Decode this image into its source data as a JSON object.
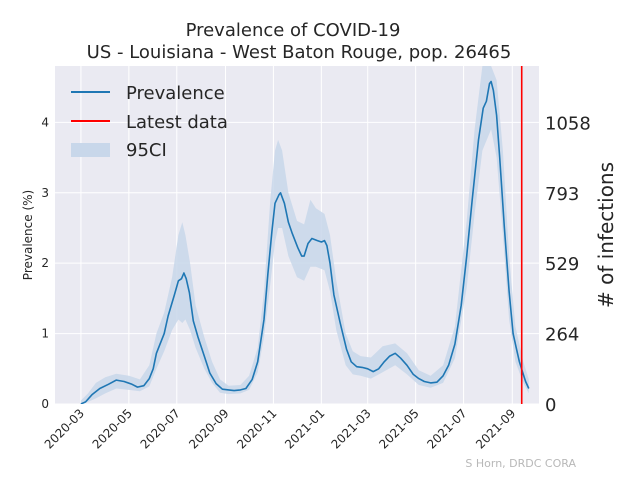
{
  "chart_data": {
    "type": "line",
    "title": "Prevalence of COVID-19",
    "subtitle": "US - Louisiana - West Baton Rouge, pop. 26465",
    "ylabel": "Prevalence (%)",
    "ylabel_right": "# of infections",
    "ylim": [
      0,
      4.8
    ],
    "xlim": [
      "2020-01-28",
      "2021-10-05"
    ],
    "grid": true,
    "legend_position": "top-left",
    "y_ticks": [
      0,
      1,
      2,
      3,
      4
    ],
    "right_ticks": [
      {
        "value": 0,
        "label": "0"
      },
      {
        "value": 1,
        "label": "264"
      },
      {
        "value": 2,
        "label": "529"
      },
      {
        "value": 3,
        "label": "793"
      },
      {
        "value": 4,
        "label": "1058"
      }
    ],
    "x_ticks": [
      "2020-03",
      "2020-05",
      "2020-07",
      "2020-09",
      "2020-11",
      "2021-01",
      "2021-03",
      "2021-05",
      "2021-07",
      "2021-09"
    ],
    "series": [
      {
        "name": "Prevalence",
        "color": "#1f77b4",
        "points": [
          [
            "2020-03-01",
            0.0
          ],
          [
            "2020-03-07",
            0.03
          ],
          [
            "2020-03-15",
            0.13
          ],
          [
            "2020-03-25",
            0.22
          ],
          [
            "2020-04-05",
            0.28
          ],
          [
            "2020-04-15",
            0.34
          ],
          [
            "2020-04-25",
            0.32
          ],
          [
            "2020-05-05",
            0.28
          ],
          [
            "2020-05-12",
            0.24
          ],
          [
            "2020-05-20",
            0.26
          ],
          [
            "2020-05-27",
            0.36
          ],
          [
            "2020-06-01",
            0.5
          ],
          [
            "2020-06-05",
            0.72
          ],
          [
            "2020-06-15",
            1.0
          ],
          [
            "2020-06-20",
            1.25
          ],
          [
            "2020-06-28",
            1.55
          ],
          [
            "2020-07-03",
            1.75
          ],
          [
            "2020-07-07",
            1.78
          ],
          [
            "2020-07-10",
            1.86
          ],
          [
            "2020-07-13",
            1.78
          ],
          [
            "2020-07-17",
            1.58
          ],
          [
            "2020-07-22",
            1.18
          ],
          [
            "2020-07-28",
            0.95
          ],
          [
            "2020-08-05",
            0.68
          ],
          [
            "2020-08-12",
            0.44
          ],
          [
            "2020-08-20",
            0.29
          ],
          [
            "2020-08-28",
            0.21
          ],
          [
            "2020-09-05",
            0.2
          ],
          [
            "2020-09-12",
            0.19
          ],
          [
            "2020-09-20",
            0.2
          ],
          [
            "2020-09-27",
            0.22
          ],
          [
            "2020-10-05",
            0.35
          ],
          [
            "2020-10-12",
            0.6
          ],
          [
            "2020-10-20",
            1.2
          ],
          [
            "2020-10-25",
            1.85
          ],
          [
            "2020-10-30",
            2.45
          ],
          [
            "2020-11-03",
            2.85
          ],
          [
            "2020-11-08",
            2.97
          ],
          [
            "2020-11-10",
            3.0
          ],
          [
            "2020-11-15",
            2.85
          ],
          [
            "2020-11-20",
            2.58
          ],
          [
            "2020-11-25",
            2.42
          ],
          [
            "2020-12-02",
            2.22
          ],
          [
            "2020-12-07",
            2.1
          ],
          [
            "2020-12-10",
            2.1
          ],
          [
            "2020-12-15",
            2.28
          ],
          [
            "2020-12-20",
            2.35
          ],
          [
            "2020-12-27",
            2.32
          ],
          [
            "2021-01-01",
            2.3
          ],
          [
            "2021-01-05",
            2.32
          ],
          [
            "2021-01-08",
            2.25
          ],
          [
            "2021-01-12",
            2.0
          ],
          [
            "2021-01-17",
            1.55
          ],
          [
            "2021-01-25",
            1.15
          ],
          [
            "2021-02-02",
            0.78
          ],
          [
            "2021-02-08",
            0.6
          ],
          [
            "2021-02-15",
            0.53
          ],
          [
            "2021-02-22",
            0.52
          ],
          [
            "2021-03-01",
            0.5
          ],
          [
            "2021-03-08",
            0.46
          ],
          [
            "2021-03-15",
            0.5
          ],
          [
            "2021-03-22",
            0.6
          ],
          [
            "2021-03-29",
            0.68
          ],
          [
            "2021-04-05",
            0.72
          ],
          [
            "2021-04-12",
            0.65
          ],
          [
            "2021-04-20",
            0.55
          ],
          [
            "2021-04-28",
            0.42
          ],
          [
            "2021-05-05",
            0.36
          ],
          [
            "2021-05-12",
            0.32
          ],
          [
            "2021-05-20",
            0.3
          ],
          [
            "2021-05-28",
            0.31
          ],
          [
            "2021-06-05",
            0.4
          ],
          [
            "2021-06-12",
            0.55
          ],
          [
            "2021-06-20",
            0.85
          ],
          [
            "2021-06-28",
            1.4
          ],
          [
            "2021-07-05",
            2.1
          ],
          [
            "2021-07-12",
            2.9
          ],
          [
            "2021-07-20",
            3.75
          ],
          [
            "2021-07-26",
            4.2
          ],
          [
            "2021-07-30",
            4.3
          ],
          [
            "2021-08-03",
            4.55
          ],
          [
            "2021-08-05",
            4.58
          ],
          [
            "2021-08-08",
            4.45
          ],
          [
            "2021-08-12",
            4.1
          ],
          [
            "2021-08-16",
            3.5
          ],
          [
            "2021-08-22",
            2.5
          ],
          [
            "2021-08-28",
            1.6
          ],
          [
            "2021-09-02",
            1.0
          ],
          [
            "2021-09-06",
            0.8
          ],
          [
            "2021-09-10",
            0.6
          ],
          [
            "2021-09-15",
            0.42
          ],
          [
            "2021-09-18",
            0.32
          ],
          [
            "2021-09-22",
            0.22
          ]
        ]
      },
      {
        "name": "Latest data",
        "color": "#ff0000",
        "x": "2021-09-13"
      },
      {
        "name": "95CI",
        "color": "#c8d7ea",
        "points": [
          [
            "2020-03-01",
            0.0,
            0.05
          ],
          [
            "2020-03-10",
            0.03,
            0.15
          ],
          [
            "2020-03-20",
            0.08,
            0.3
          ],
          [
            "2020-04-01",
            0.15,
            0.38
          ],
          [
            "2020-04-15",
            0.22,
            0.43
          ],
          [
            "2020-05-01",
            0.2,
            0.4
          ],
          [
            "2020-05-15",
            0.18,
            0.35
          ],
          [
            "2020-05-27",
            0.25,
            0.55
          ],
          [
            "2020-06-05",
            0.5,
            1.0
          ],
          [
            "2020-06-15",
            0.75,
            1.3
          ],
          [
            "2020-06-25",
            1.05,
            1.8
          ],
          [
            "2020-07-03",
            1.2,
            2.4
          ],
          [
            "2020-07-08",
            1.15,
            2.58
          ],
          [
            "2020-07-12",
            1.2,
            2.4
          ],
          [
            "2020-07-18",
            1.05,
            2.0
          ],
          [
            "2020-07-25",
            0.8,
            1.4
          ],
          [
            "2020-08-05",
            0.5,
            0.95
          ],
          [
            "2020-08-15",
            0.3,
            0.6
          ],
          [
            "2020-08-25",
            0.16,
            0.35
          ],
          [
            "2020-09-05",
            0.14,
            0.26
          ],
          [
            "2020-09-20",
            0.15,
            0.27
          ],
          [
            "2020-10-01",
            0.2,
            0.4
          ],
          [
            "2020-10-12",
            0.45,
            0.8
          ],
          [
            "2020-10-20",
            0.95,
            1.6
          ],
          [
            "2020-10-28",
            1.7,
            2.9
          ],
          [
            "2020-11-03",
            2.3,
            3.6
          ],
          [
            "2020-11-07",
            2.5,
            3.75
          ],
          [
            "2020-11-12",
            2.5,
            3.6
          ],
          [
            "2020-11-20",
            2.1,
            3.0
          ],
          [
            "2020-12-01",
            1.8,
            2.6
          ],
          [
            "2020-12-10",
            1.75,
            2.55
          ],
          [
            "2020-12-18",
            1.95,
            2.9
          ],
          [
            "2020-12-25",
            1.95,
            2.78
          ],
          [
            "2021-01-05",
            1.9,
            2.7
          ],
          [
            "2021-01-12",
            1.6,
            2.4
          ],
          [
            "2021-01-20",
            1.05,
            1.75
          ],
          [
            "2021-02-01",
            0.55,
            1.0
          ],
          [
            "2021-02-10",
            0.42,
            0.75
          ],
          [
            "2021-02-20",
            0.4,
            0.68
          ],
          [
            "2021-03-05",
            0.36,
            0.66
          ],
          [
            "2021-03-20",
            0.45,
            0.82
          ],
          [
            "2021-04-05",
            0.55,
            0.86
          ],
          [
            "2021-04-20",
            0.42,
            0.72
          ],
          [
            "2021-05-05",
            0.27,
            0.48
          ],
          [
            "2021-05-20",
            0.23,
            0.4
          ],
          [
            "2021-06-05",
            0.3,
            0.55
          ],
          [
            "2021-06-20",
            0.65,
            1.1
          ],
          [
            "2021-07-05",
            1.65,
            2.6
          ],
          [
            "2021-07-15",
            2.7,
            3.9
          ],
          [
            "2021-07-25",
            3.6,
            4.8
          ],
          [
            "2021-08-05",
            3.9,
            4.8
          ],
          [
            "2021-08-12",
            3.5,
            4.6
          ],
          [
            "2021-08-20",
            2.4,
            3.6
          ],
          [
            "2021-08-28",
            1.2,
            2.1
          ],
          [
            "2021-09-05",
            0.6,
            1.1
          ],
          [
            "2021-09-15",
            0.3,
            0.6
          ],
          [
            "2021-09-22",
            0.15,
            0.35
          ]
        ]
      }
    ]
  },
  "credit": "S Horn, DRDC CORA"
}
